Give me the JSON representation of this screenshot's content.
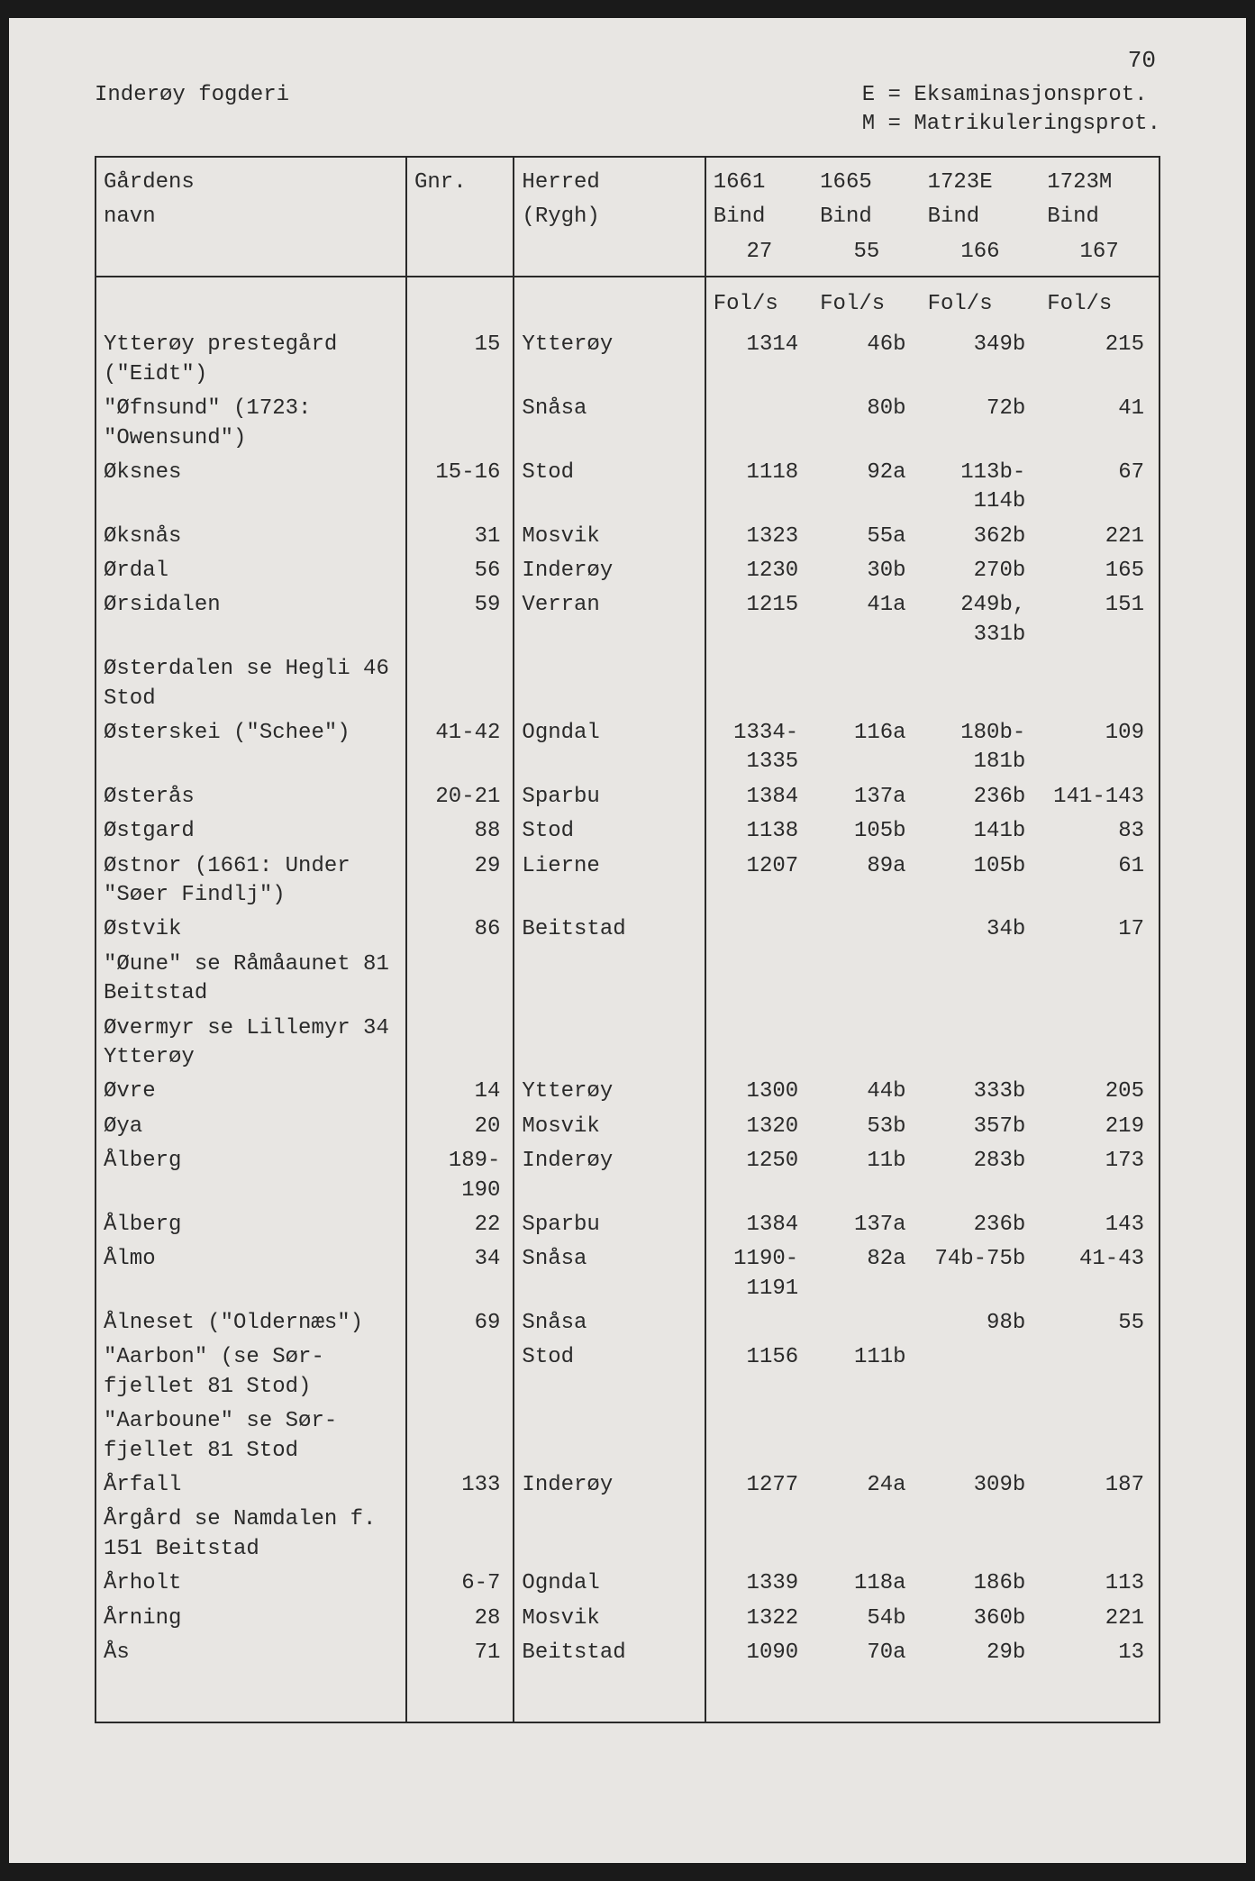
{
  "page_number": "70",
  "header": {
    "left": "Inderøy fogderi",
    "right_line1": "E = Eksaminasjonsprot.",
    "right_line2": "M = Matrikuleringsprot."
  },
  "columns": {
    "name_l1": "Gårdens",
    "name_l2": "navn",
    "gnr": "Gnr.",
    "herred_l1": "Herred",
    "herred_l2": "(Rygh)",
    "y1_l1": "1661",
    "y1_l2": "Bind",
    "y1_l3": "27",
    "y2_l1": "1665",
    "y2_l2": "Bind",
    "y2_l3": "55",
    "y3_l1": "1723E",
    "y3_l2": "Bind",
    "y3_l3": "166",
    "y4_l1": "1723M",
    "y4_l2": "Bind",
    "y4_l3": "167",
    "fols": "Fol/s"
  },
  "rows": [
    {
      "name": "Ytterøy prestegård (\"Eidt\")",
      "gnr": "15",
      "herred": "Ytterøy",
      "y1": "1314",
      "y2": "46b",
      "y3": "349b",
      "y4": "215"
    },
    {
      "name": "\"Øfnsund\" (1723: \"Owensund\")",
      "gnr": "",
      "herred": "Snåsa",
      "y1": "",
      "y2": "80b",
      "y3": "72b",
      "y4": "41"
    },
    {
      "name": "Øksnes",
      "gnr": "15-16",
      "herred": "Stod",
      "y1": "1118",
      "y2": "92a",
      "y3": "113b-114b",
      "y4": "67"
    },
    {
      "name": "Øksnås",
      "gnr": "31",
      "herred": "Mosvik",
      "y1": "1323",
      "y2": "55a",
      "y3": "362b",
      "y4": "221"
    },
    {
      "name": "Ørdal",
      "gnr": "56",
      "herred": "Inderøy",
      "y1": "1230",
      "y2": "30b",
      "y3": "270b",
      "y4": "165"
    },
    {
      "name": "Ørsidalen",
      "gnr": "59",
      "herred": "Verran",
      "y1": "1215",
      "y2": "41a",
      "y3": "249b, 331b",
      "y4": "151"
    },
    {
      "name": "Østerdalen se Hegli 46 Stod",
      "gnr": "",
      "herred": "",
      "y1": "",
      "y2": "",
      "y3": "",
      "y4": ""
    },
    {
      "name": "Østerskei (\"Schee\")",
      "gnr": "41-42",
      "herred": "Ogndal",
      "y1": "1334-1335",
      "y2": "116a",
      "y3": "180b-181b",
      "y4": "109"
    },
    {
      "name": "Østerås",
      "gnr": "20-21",
      "herred": "Sparbu",
      "y1": "1384",
      "y2": "137a",
      "y3": "236b",
      "y4": "141-143"
    },
    {
      "name": "Østgard",
      "gnr": "88",
      "herred": "Stod",
      "y1": "1138",
      "y2": "105b",
      "y3": "141b",
      "y4": "83"
    },
    {
      "name": "Østnor (1661: Under \"Søer Findlj\")",
      "gnr": "29",
      "herred": "Lierne",
      "y1": "1207",
      "y2": "89a",
      "y3": "105b",
      "y4": "61"
    },
    {
      "name": "Østvik",
      "gnr": "86",
      "herred": "Beitstad",
      "y1": "",
      "y2": "",
      "y3": "34b",
      "y4": "17"
    },
    {
      "name": "\"Øune\" se Råmåaunet 81 Beitstad",
      "gnr": "",
      "herred": "",
      "y1": "",
      "y2": "",
      "y3": "",
      "y4": ""
    },
    {
      "name": "Øvermyr se Lillemyr 34 Ytterøy",
      "gnr": "",
      "herred": "",
      "y1": "",
      "y2": "",
      "y3": "",
      "y4": ""
    },
    {
      "name": "Øvre",
      "gnr": "14",
      "herred": "Ytterøy",
      "y1": "1300",
      "y2": "44b",
      "y3": "333b",
      "y4": "205"
    },
    {
      "name": "Øya",
      "gnr": "20",
      "herred": "Mosvik",
      "y1": "1320",
      "y2": "53b",
      "y3": "357b",
      "y4": "219"
    },
    {
      "name": "Ålberg",
      "gnr": "189-190",
      "herred": "Inderøy",
      "y1": "1250",
      "y2": "11b",
      "y3": "283b",
      "y4": "173"
    },
    {
      "name": "Ålberg",
      "gnr": "22",
      "herred": "Sparbu",
      "y1": "1384",
      "y2": "137a",
      "y3": "236b",
      "y4": "143"
    },
    {
      "name": "Ålmo",
      "gnr": "34",
      "herred": "Snåsa",
      "y1": "1190-1191",
      "y2": "82a",
      "y3": "74b-75b",
      "y4": "41-43"
    },
    {
      "name": "Ålneset (\"Oldernæs\")",
      "gnr": "69",
      "herred": "Snåsa",
      "y1": "",
      "y2": "",
      "y3": "98b",
      "y4": "55"
    },
    {
      "name": "\"Aarbon\" (se Sør-fjellet 81 Stod)",
      "gnr": "",
      "herred": "Stod",
      "y1": "1156",
      "y2": "111b",
      "y3": "",
      "y4": ""
    },
    {
      "name": "\"Aarboune\" se Sør-fjellet 81 Stod",
      "gnr": "",
      "herred": "",
      "y1": "",
      "y2": "",
      "y3": "",
      "y4": ""
    },
    {
      "name": "Årfall",
      "gnr": "133",
      "herred": "Inderøy",
      "y1": "1277",
      "y2": "24a",
      "y3": "309b",
      "y4": "187"
    },
    {
      "name": "Årgård se Namdalen f. 151 Beitstad",
      "gnr": "",
      "herred": "",
      "y1": "",
      "y2": "",
      "y3": "",
      "y4": ""
    },
    {
      "name": "Årholt",
      "gnr": "6-7",
      "herred": "Ogndal",
      "y1": "1339",
      "y2": "118a",
      "y3": "186b",
      "y4": "113"
    },
    {
      "name": "Årning",
      "gnr": "28",
      "herred": "Mosvik",
      "y1": "1322",
      "y2": "54b",
      "y3": "360b",
      "y4": "221"
    },
    {
      "name": "Ås",
      "gnr": "71",
      "herred": "Beitstad",
      "y1": "1090",
      "y2": "70a",
      "y3": "29b",
      "y4": "13"
    }
  ]
}
